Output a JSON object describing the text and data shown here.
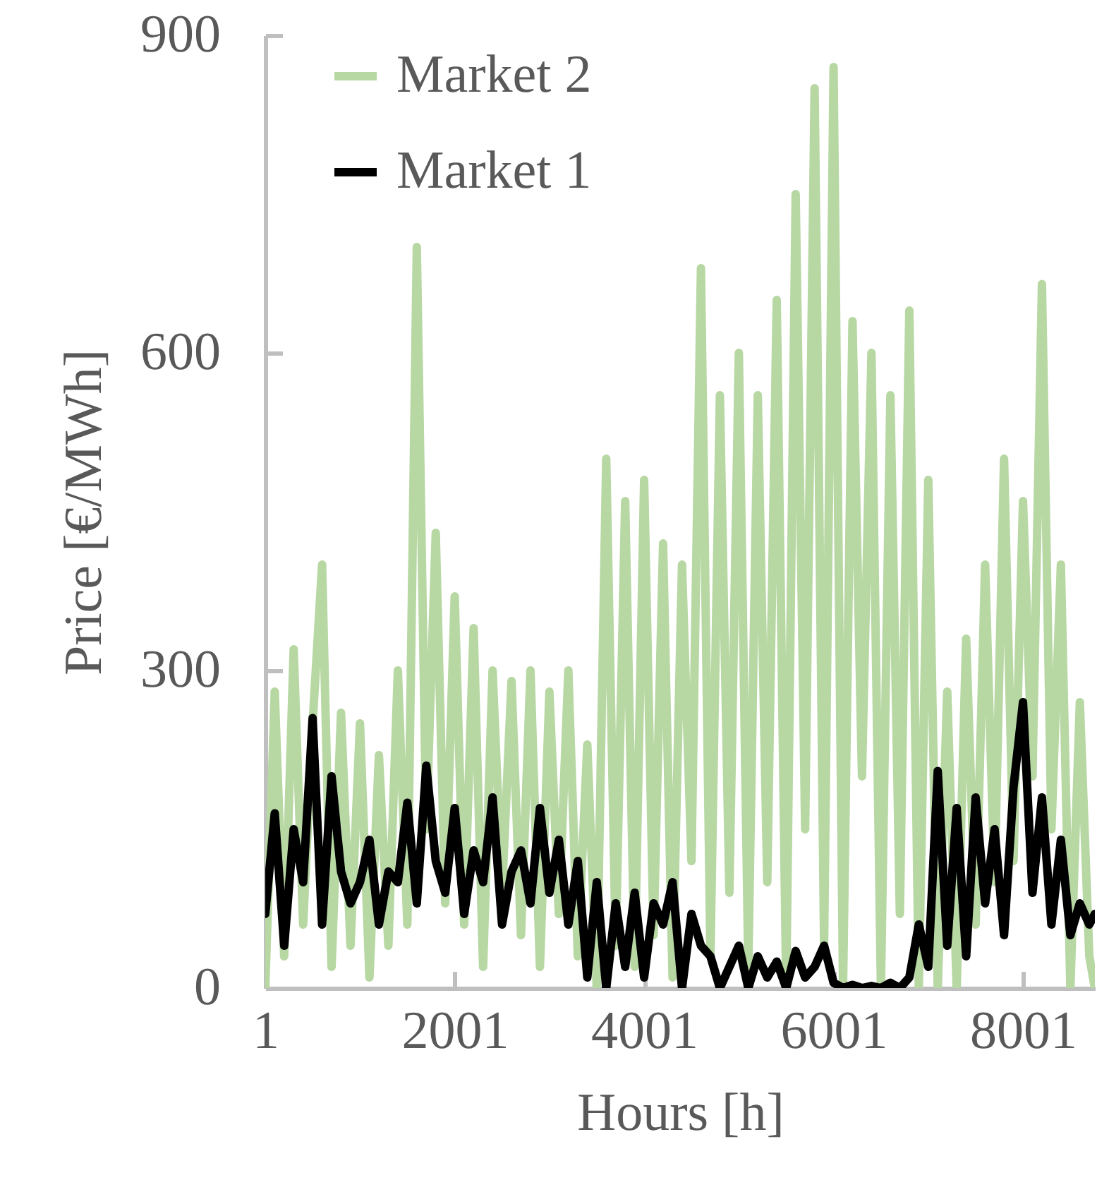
{
  "chart_data": {
    "type": "line",
    "xlabel": "Hours [h]",
    "ylabel": "Price [€/MWh]",
    "xlim": [
      1,
      8760
    ],
    "xticks": [
      1,
      2001,
      4001,
      6001,
      8001
    ],
    "ylim": [
      0,
      900
    ],
    "yticks": [
      0,
      300,
      600,
      900
    ],
    "legend": "top left",
    "line_style": "solid",
    "marker": "none",
    "x": [
      1,
      101,
      201,
      301,
      401,
      501,
      601,
      701,
      801,
      901,
      1001,
      1101,
      1201,
      1301,
      1401,
      1501,
      1601,
      1701,
      1801,
      1901,
      2001,
      2101,
      2201,
      2301,
      2401,
      2501,
      2601,
      2701,
      2801,
      2901,
      3001,
      3101,
      3201,
      3301,
      3401,
      3501,
      3601,
      3701,
      3801,
      3901,
      4001,
      4101,
      4201,
      4301,
      4401,
      4501,
      4601,
      4701,
      4801,
      4901,
      5001,
      5101,
      5201,
      5301,
      5401,
      5501,
      5601,
      5701,
      5801,
      5901,
      6001,
      6101,
      6201,
      6301,
      6401,
      6501,
      6601,
      6701,
      6801,
      6901,
      7001,
      7101,
      7201,
      7301,
      7401,
      7501,
      7601,
      7701,
      7801,
      7901,
      8001,
      8101,
      8201,
      8301,
      8401,
      8501,
      8601,
      8701,
      8760
    ],
    "series": [
      {
        "name": "Market 2",
        "color": "#b7d7a3",
        "values": [
          0,
          280,
          30,
          320,
          60,
          250,
          400,
          20,
          260,
          40,
          250,
          10,
          220,
          40,
          300,
          60,
          700,
          150,
          430,
          80,
          370,
          60,
          340,
          20,
          300,
          90,
          290,
          50,
          300,
          20,
          280,
          70,
          300,
          30,
          230,
          0,
          500,
          40,
          460,
          20,
          480,
          50,
          420,
          10,
          400,
          120,
          680,
          30,
          560,
          90,
          600,
          20,
          560,
          100,
          650,
          0,
          750,
          150,
          850,
          40,
          870,
          0,
          630,
          200,
          600,
          0,
          560,
          70,
          640,
          0,
          480,
          0,
          280,
          0,
          330,
          60,
          400,
          100,
          500,
          120,
          460,
          200,
          665,
          150,
          400,
          0,
          270,
          30,
          0
        ]
      },
      {
        "name": "Market 1",
        "color": "#000000",
        "values": [
          70,
          165,
          40,
          150,
          100,
          255,
          60,
          200,
          110,
          80,
          100,
          140,
          60,
          110,
          100,
          175,
          80,
          210,
          120,
          90,
          170,
          70,
          130,
          100,
          180,
          60,
          110,
          130,
          80,
          170,
          90,
          140,
          60,
          120,
          10,
          100,
          0,
          80,
          20,
          90,
          10,
          80,
          60,
          100,
          0,
          70,
          40,
          30,
          0,
          20,
          40,
          0,
          30,
          10,
          25,
          0,
          35,
          10,
          20,
          40,
          5,
          0,
          3,
          0,
          2,
          0,
          5,
          0,
          10,
          60,
          20,
          205,
          40,
          170,
          30,
          180,
          80,
          150,
          50,
          190,
          270,
          90,
          180,
          60,
          140,
          50,
          80,
          60,
          70
        ]
      }
    ]
  }
}
